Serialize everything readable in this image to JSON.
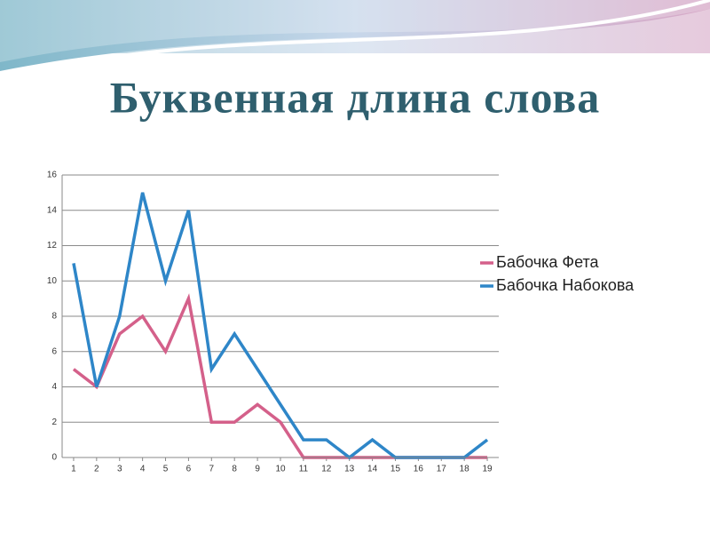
{
  "chart_data": {
    "type": "line",
    "title": "Буквенная длина слова",
    "x": [
      1,
      2,
      3,
      4,
      5,
      6,
      7,
      8,
      9,
      10,
      11,
      12,
      13,
      14,
      15,
      16,
      17,
      18,
      19
    ],
    "xlim": [
      0.5,
      19.5
    ],
    "xticks": [
      1,
      2,
      3,
      4,
      5,
      6,
      7,
      8,
      9,
      10,
      11,
      12,
      13,
      14,
      15,
      16,
      17,
      18,
      19
    ],
    "ylim": [
      0,
      16
    ],
    "yticks": [
      0,
      2,
      4,
      6,
      8,
      10,
      12,
      14,
      16
    ],
    "grid": true,
    "legend": "right",
    "series": [
      {
        "name": "Бабочка Фета",
        "color": "#d4608a",
        "values": [
          5,
          4,
          7,
          8,
          6,
          9,
          2,
          2,
          3,
          2,
          0,
          0,
          0,
          0,
          0,
          0,
          0,
          0,
          0
        ]
      },
      {
        "name": "Бабочка Набокова",
        "color": "#2e86c8",
        "values": [
          11,
          4,
          8,
          15,
          10,
          14,
          5,
          7,
          5,
          3,
          1,
          1,
          0,
          1,
          0,
          0,
          0,
          0,
          1
        ]
      }
    ]
  }
}
